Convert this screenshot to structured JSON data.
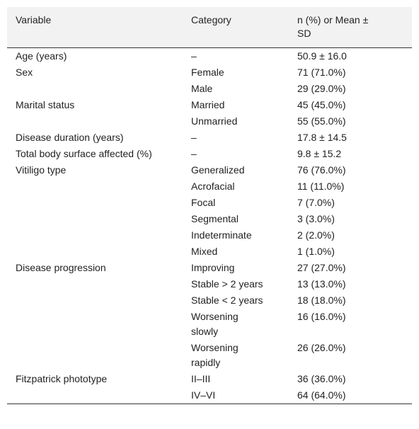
{
  "table": {
    "header": [
      "Variable",
      "Category",
      "n (%) or Mean ± SD"
    ],
    "groups": [
      {
        "variable": "Age (years)",
        "items": [
          {
            "category": "–",
            "value": "50.9 ± 16.0"
          }
        ]
      },
      {
        "variable": "Sex",
        "items": [
          {
            "category": "Female",
            "value": "71 (71.0%)"
          },
          {
            "category": "Male",
            "value": "29 (29.0%)"
          }
        ]
      },
      {
        "variable": "Marital status",
        "items": [
          {
            "category": "Married",
            "value": "45 (45.0%)"
          },
          {
            "category": "Unmarried",
            "value": "55 (55.0%)"
          }
        ]
      },
      {
        "variable": "Disease duration (years)",
        "items": [
          {
            "category": "–",
            "value": "17.8 ± 14.5"
          }
        ]
      },
      {
        "variable": "Total body surface affected (%)",
        "items": [
          {
            "category": "–",
            "value": "9.8 ± 15.2"
          }
        ]
      },
      {
        "variable": "Vitiligo type",
        "items": [
          {
            "category": "Generalized",
            "value": "76 (76.0%)"
          },
          {
            "category": "Acrofacial",
            "value": "11 (11.0%)"
          },
          {
            "category": "Focal",
            "value": "7 (7.0%)"
          },
          {
            "category": "Segmental",
            "value": "3 (3.0%)"
          },
          {
            "category": "Indeterminate",
            "value": "2 (2.0%)"
          },
          {
            "category": "Mixed",
            "value": "1 (1.0%)"
          }
        ]
      },
      {
        "variable": "Disease progression",
        "items": [
          {
            "category": "Improving",
            "value": "27 (27.0%)"
          },
          {
            "category": "Stable > 2 years",
            "value": "13 (13.0%)"
          },
          {
            "category": "Stable < 2 years",
            "value": "18 (18.0%)"
          },
          {
            "category": "Worsening slowly",
            "value": "16 (16.0%)"
          },
          {
            "category": "Worsening rapidly",
            "value": "26 (26.0%)"
          }
        ]
      },
      {
        "variable": "Fitzpatrick phototype",
        "items": [
          {
            "category": "II–III",
            "value": "36 (36.0%)"
          },
          {
            "category": "IV–VI",
            "value": "64 (64.0%)"
          }
        ]
      }
    ]
  }
}
